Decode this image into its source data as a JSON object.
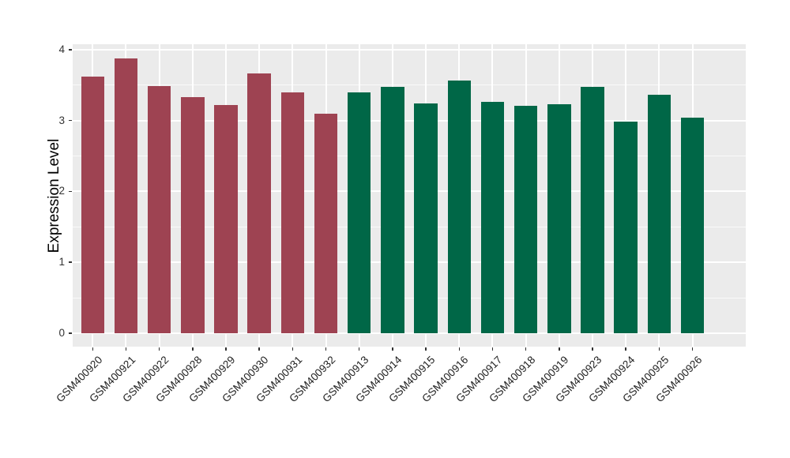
{
  "chart_data": {
    "type": "bar",
    "title": "",
    "xlabel": "",
    "ylabel": "Expression Level",
    "ylim": [
      0,
      4
    ],
    "yticks": [
      0,
      1,
      2,
      3,
      4
    ],
    "ytick_labels": [
      "0",
      "1",
      "2",
      "3",
      "4"
    ],
    "minor_ticks": [
      0.5,
      1.5,
      2.5,
      3.5
    ],
    "grid": "horizontal major+minor white lines, vertical white lines at category centers, gray panel background",
    "legend_position": "none",
    "categories": [
      "GSM400920",
      "GSM400921",
      "GSM400922",
      "GSM400928",
      "GSM400929",
      "GSM400930",
      "GSM400931",
      "GSM400932",
      "GSM400913",
      "GSM400914",
      "GSM400915",
      "GSM400916",
      "GSM400917",
      "GSM400918",
      "GSM400919",
      "GSM400923",
      "GSM400924",
      "GSM400925",
      "GSM400926"
    ],
    "values": [
      3.62,
      3.87,
      3.48,
      3.33,
      3.22,
      3.66,
      3.4,
      3.1,
      3.4,
      3.47,
      3.24,
      3.56,
      3.26,
      3.21,
      3.23,
      3.47,
      2.98,
      3.36,
      3.04
    ],
    "groups": [
      "group1",
      "group1",
      "group1",
      "group1",
      "group1",
      "group1",
      "group1",
      "group1",
      "group2",
      "group2",
      "group2",
      "group2",
      "group2",
      "group2",
      "group2",
      "group2",
      "group2",
      "group2",
      "group2"
    ],
    "group_colors": {
      "group1": "#9E4352",
      "group2": "#006747"
    }
  },
  "style_colors": {
    "panel_background": "#EBEBEB",
    "gridline": "#FFFFFF",
    "tick_text": "#333333",
    "axis_title_text": "#000000",
    "figure_background": "#FFFFFF"
  }
}
